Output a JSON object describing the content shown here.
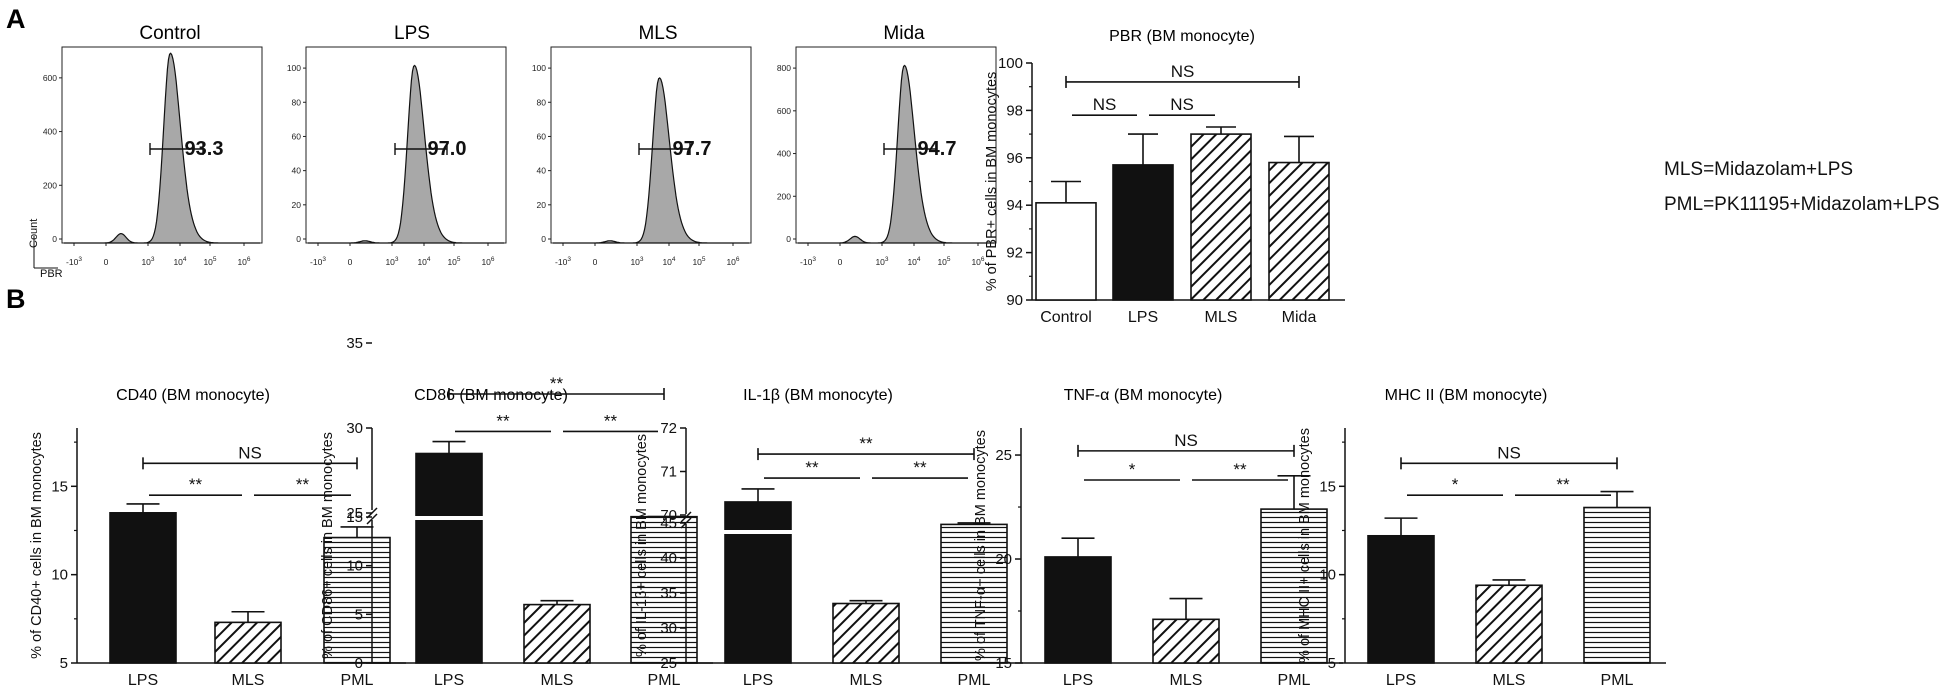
{
  "panels": {
    "a": "A",
    "b": "B"
  },
  "histograms": {
    "x_ticks": [
      "-10^3",
      "0",
      "10^3",
      "10^4",
      "10^5",
      "10^6"
    ],
    "y_axis_label": "Count",
    "x_axis_label": "PBR",
    "plots": [
      {
        "title": "Control",
        "percent": "93.3",
        "y_ticks": [
          "0",
          "200",
          "400",
          "600"
        ],
        "y_tick_values": [
          0,
          200,
          400,
          600
        ],
        "y_max": 700,
        "peak": 680
      },
      {
        "title": "LPS",
        "percent": "97.0",
        "y_ticks": [
          "0",
          "20",
          "40",
          "60",
          "80",
          "100"
        ],
        "y_tick_values": [
          0,
          20,
          40,
          60,
          80,
          100
        ],
        "y_max": 110,
        "peak": 100
      },
      {
        "title": "MLS",
        "percent": "97.7",
        "y_ticks": [
          "0",
          "20",
          "40",
          "60",
          "80",
          "100"
        ],
        "y_tick_values": [
          0,
          20,
          40,
          60,
          80,
          100
        ],
        "y_max": 110,
        "peak": 93
      },
      {
        "title": "Mida",
        "percent": "94.7",
        "y_ticks": [
          "0",
          "200",
          "400",
          "600",
          "800"
        ],
        "y_tick_values": [
          0,
          200,
          400,
          600,
          800
        ],
        "y_max": 880,
        "peak": 800
      }
    ]
  },
  "legend_notes": [
    "MLS=Midazolam+LPS",
    "PML=PK11195+Midazolam+LPS"
  ],
  "chart_data": [
    {
      "id": "pbr",
      "type": "bar",
      "title": "PBR (BM monocyte)",
      "ylabel": "% of PBR+ cells in BM monocytes",
      "categories": [
        "Control",
        "LPS",
        "MLS",
        "Mida"
      ],
      "values": [
        94.1,
        95.7,
        97.0,
        95.8
      ],
      "errors": [
        0.9,
        1.3,
        0.3,
        1.1
      ],
      "fills": [
        "white",
        "black",
        "diag",
        "diag"
      ],
      "ylim": [
        90,
        100
      ],
      "yticks": [
        90,
        92,
        94,
        96,
        98,
        100
      ],
      "tick_labels": [
        "90",
        "92",
        "94",
        "96",
        "98",
        "100"
      ],
      "sig": [
        {
          "from": 0,
          "to": 3,
          "label": "NS",
          "y": 99.2
        },
        {
          "from": 0,
          "to": 1,
          "label": "NS",
          "y": 97.8
        },
        {
          "from": 1,
          "to": 2,
          "label": "NS",
          "y": 97.8
        }
      ]
    },
    {
      "id": "cd40",
      "type": "bar",
      "title": "CD40 (BM monocyte)",
      "ylabel": "% of CD40+ cells in BM monocytes",
      "categories": [
        "LPS",
        "MLS",
        "PML"
      ],
      "values": [
        13.5,
        7.3,
        12.1
      ],
      "errors": [
        0.5,
        0.6,
        0.6
      ],
      "fills": [
        "black",
        "diag",
        "horiz"
      ],
      "ylim": [
        5,
        18.3
      ],
      "yticks": [
        5,
        10,
        15
      ],
      "tick_labels": [
        "5",
        "10",
        "15"
      ],
      "sig": [
        {
          "from": 0,
          "to": 2,
          "label": "NS",
          "y": 16.3
        },
        {
          "from": 0,
          "to": 1,
          "label": "**",
          "y": 14.5
        },
        {
          "from": 1,
          "to": 2,
          "label": "**",
          "y": 14.5
        }
      ]
    },
    {
      "id": "cd86",
      "type": "bar",
      "title": "CD86 (BM monocyte)",
      "ylabel": "% of CD86+ cells in BM monocytes",
      "categories": [
        "LPS",
        "MLS",
        "PML"
      ],
      "values": [
        28.5,
        6.0,
        15.8
      ],
      "errors": [
        0.7,
        0.4,
        0.2
      ],
      "fills": [
        "black",
        "diag",
        "horiz"
      ],
      "broken": true,
      "ylim": [
        0,
        35
      ],
      "yticks": [
        0,
        5,
        10,
        15,
        25,
        30,
        35
      ],
      "tick_labels": [
        "0",
        "5",
        "10",
        "15",
        "25",
        "30",
        "35"
      ],
      "sig": [
        {
          "from": 0,
          "to": 2,
          "label": "**",
          "y": 32.0
        },
        {
          "from": 0,
          "to": 1,
          "label": "**",
          "y": 29.8
        },
        {
          "from": 1,
          "to": 2,
          "label": "**",
          "y": 29.8
        }
      ]
    },
    {
      "id": "il1b",
      "type": "bar",
      "title": "IL-1β (BM monocyte)",
      "ylabel": "% of IL-1β+ cells in BM monocytes",
      "categories": [
        "LPS",
        "MLS",
        "PML"
      ],
      "values": [
        70.3,
        33.5,
        44.8
      ],
      "errors": [
        0.3,
        0.4,
        0.3
      ],
      "fills": [
        "black",
        "diag",
        "horiz"
      ],
      "broken": true,
      "ylim": [
        25,
        72
      ],
      "yticks": [
        25,
        30,
        35,
        40,
        45,
        70,
        71,
        72
      ],
      "tick_labels": [
        "25",
        "30",
        "35",
        "40",
        "45",
        "70",
        "71",
        "72"
      ],
      "sig": [
        {
          "from": 0,
          "to": 2,
          "label": "**",
          "y": 71.4
        },
        {
          "from": 0,
          "to": 1,
          "label": "**",
          "y": 70.85
        },
        {
          "from": 1,
          "to": 2,
          "label": "**",
          "y": 70.85
        }
      ]
    },
    {
      "id": "tnfa",
      "type": "bar",
      "title": "TNF-α (BM monocyte)",
      "ylabel": "% of TNF-α+ cells in BM monocytes",
      "categories": [
        "LPS",
        "MLS",
        "PML"
      ],
      "values": [
        20.1,
        17.1,
        22.4
      ],
      "errors": [
        0.9,
        1.0,
        1.6
      ],
      "fills": [
        "black",
        "diag",
        "horiz"
      ],
      "ylim": [
        15,
        26.3
      ],
      "yticks": [
        15,
        20,
        25
      ],
      "tick_labels": [
        "15",
        "20",
        "25"
      ],
      "sig": [
        {
          "from": 0,
          "to": 2,
          "label": "NS",
          "y": 25.2
        },
        {
          "from": 0,
          "to": 1,
          "label": "*",
          "y": 23.8
        },
        {
          "from": 1,
          "to": 2,
          "label": "**",
          "y": 23.8
        }
      ]
    },
    {
      "id": "mhc2",
      "type": "bar",
      "title": "MHC II (BM monocyte)",
      "ylabel": "% of MHC II+ cells in BM monocytes",
      "categories": [
        "LPS",
        "MLS",
        "PML"
      ],
      "values": [
        12.2,
        9.4,
        13.8
      ],
      "errors": [
        1.0,
        0.3,
        0.9
      ],
      "fills": [
        "black",
        "diag",
        "horiz"
      ],
      "ylim": [
        5,
        18.3
      ],
      "yticks": [
        5,
        10,
        15
      ],
      "tick_labels": [
        "5",
        "10",
        "15"
      ],
      "sig": [
        {
          "from": 0,
          "to": 2,
          "label": "NS",
          "y": 16.3
        },
        {
          "from": 0,
          "to": 1,
          "label": "*",
          "y": 14.5
        },
        {
          "from": 1,
          "to": 2,
          "label": "**",
          "y": 14.5
        }
      ]
    }
  ]
}
